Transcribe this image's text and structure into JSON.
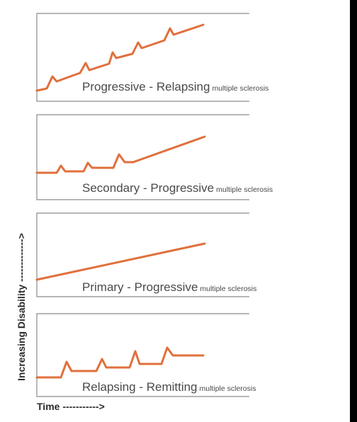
{
  "colors": {
    "trace": "#e0703c",
    "axis": "#8a8a8a",
    "label": "#4a4a4a",
    "axis_label": "#2b2b2b",
    "frame": "#000000"
  },
  "y_axis_label": "Increasing Disability ------------->",
  "x_axis_label": "Time ----------->",
  "panels": [
    {
      "name": "Progressive - Relapsing",
      "qualifier": "multiple sclerosis",
      "pattern": "steadily rising with relapses"
    },
    {
      "name": "Secondary - Progressive",
      "qualifier": "multiple sclerosis",
      "pattern": "relapses then steady rise"
    },
    {
      "name": "Primary - Progressive",
      "qualifier": "multiple sclerosis",
      "pattern": "steady rise"
    },
    {
      "name": "Relapsing - Remitting",
      "qualifier": "multiple sclerosis",
      "pattern": "relapses with partial recovery"
    }
  ]
}
